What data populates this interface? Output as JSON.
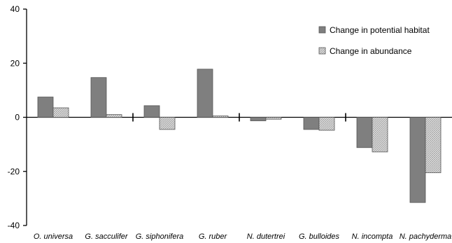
{
  "chart_data": {
    "type": "bar",
    "categories": [
      "O. universa",
      "G. sacculifer",
      "G. siphonifera",
      "G. ruber",
      "N. dutertrei",
      "G. bulloides",
      "N. incompta",
      "N. pachyderma"
    ],
    "series": [
      {
        "name": "Change in potential habitat",
        "values": [
          7.5,
          14.7,
          4.3,
          17.8,
          -1.3,
          -4.5,
          -11.2,
          -31.5
        ],
        "color": "#7f7f7f"
      },
      {
        "name": "Change in abundance",
        "values": [
          3.5,
          1.0,
          -4.5,
          0.5,
          -0.7,
          -4.8,
          -12.8,
          -20.5
        ],
        "color": "#d9d9d9",
        "pattern": "crosshatch"
      }
    ],
    "ylim": [
      -40,
      40
    ],
    "yticks": [
      -40,
      -20,
      0,
      20,
      40
    ],
    "ytick_labels": [
      "-40",
      "-20",
      "0",
      "20",
      "40"
    ],
    "separators_after": [
      "G. sacculifer",
      "G. ruber",
      "G. bulloides"
    ],
    "legend": "top-right",
    "grid": false,
    "title": "",
    "xlabel": "",
    "ylabel": ""
  }
}
